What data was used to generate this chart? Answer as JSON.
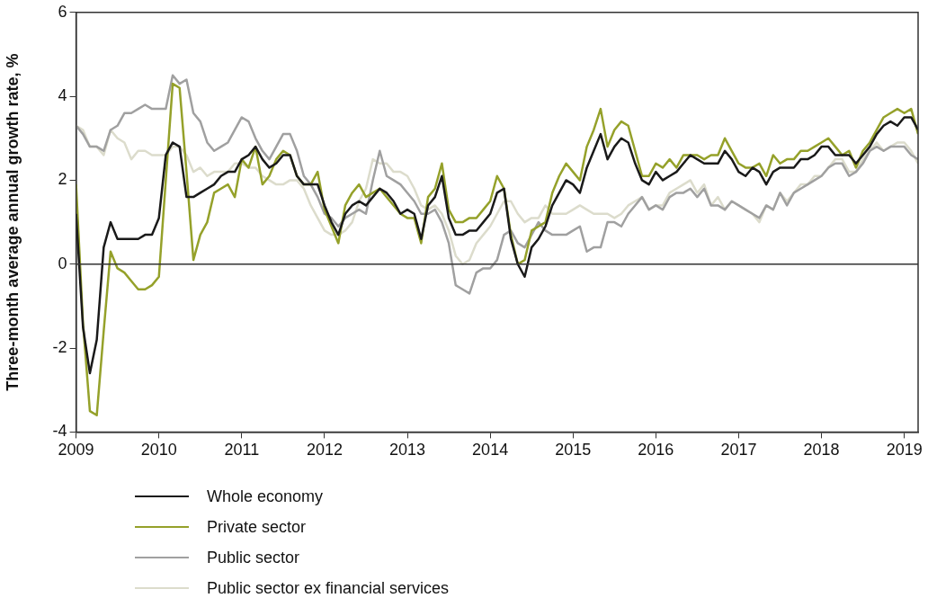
{
  "chart_data": {
    "type": "line",
    "ylabel": "Three-month average annual growth rate, %",
    "x": [
      "2009-01",
      "2009-02",
      "2009-03",
      "2009-04",
      "2009-05",
      "2009-06",
      "2009-07",
      "2009-08",
      "2009-09",
      "2009-10",
      "2009-11",
      "2009-12",
      "2010-01",
      "2010-02",
      "2010-03",
      "2010-04",
      "2010-05",
      "2010-06",
      "2010-07",
      "2010-08",
      "2010-09",
      "2010-10",
      "2010-11",
      "2010-12",
      "2011-01",
      "2011-02",
      "2011-03",
      "2011-04",
      "2011-05",
      "2011-06",
      "2011-07",
      "2011-08",
      "2011-09",
      "2011-10",
      "2011-11",
      "2011-12",
      "2012-01",
      "2012-02",
      "2012-03",
      "2012-04",
      "2012-05",
      "2012-06",
      "2012-07",
      "2012-08",
      "2012-09",
      "2012-10",
      "2012-11",
      "2012-12",
      "2013-01",
      "2013-02",
      "2013-03",
      "2013-04",
      "2013-05",
      "2013-06",
      "2013-07",
      "2013-08",
      "2013-09",
      "2013-10",
      "2013-11",
      "2013-12",
      "2014-01",
      "2014-02",
      "2014-03",
      "2014-04",
      "2014-05",
      "2014-06",
      "2014-07",
      "2014-08",
      "2014-09",
      "2014-10",
      "2014-11",
      "2014-12",
      "2015-01",
      "2015-02",
      "2015-03",
      "2015-04",
      "2015-05",
      "2015-06",
      "2015-07",
      "2015-08",
      "2015-09",
      "2015-10",
      "2015-11",
      "2015-12",
      "2016-01",
      "2016-02",
      "2016-03",
      "2016-04",
      "2016-05",
      "2016-06",
      "2016-07",
      "2016-08",
      "2016-09",
      "2016-10",
      "2016-11",
      "2016-12",
      "2017-01",
      "2017-02",
      "2017-03",
      "2017-04",
      "2017-05",
      "2017-06",
      "2017-07",
      "2017-08",
      "2017-09",
      "2017-10",
      "2017-11",
      "2017-12",
      "2018-01",
      "2018-02",
      "2018-03",
      "2018-04",
      "2018-05",
      "2018-06",
      "2018-07",
      "2018-08",
      "2018-09",
      "2018-10",
      "2018-11",
      "2018-12",
      "2019-01",
      "2019-02",
      "2019-03"
    ],
    "series": [
      {
        "name": "Whole economy",
        "color": "#1a1a1a",
        "values": [
          1.2,
          -1.5,
          -2.6,
          -1.8,
          0.4,
          1.0,
          0.6,
          0.6,
          0.6,
          0.6,
          0.7,
          0.7,
          1.1,
          2.6,
          2.9,
          2.8,
          1.6,
          1.6,
          1.7,
          1.8,
          1.9,
          2.1,
          2.2,
          2.2,
          2.5,
          2.6,
          2.8,
          2.5,
          2.3,
          2.4,
          2.6,
          2.6,
          2.1,
          1.9,
          1.9,
          1.9,
          1.4,
          1.0,
          0.7,
          1.2,
          1.4,
          1.5,
          1.4,
          1.6,
          1.8,
          1.7,
          1.5,
          1.2,
          1.3,
          1.2,
          0.6,
          1.4,
          1.6,
          2.1,
          1.1,
          0.7,
          0.7,
          0.8,
          0.8,
          1.0,
          1.2,
          1.7,
          1.8,
          0.6,
          0.0,
          -0.3,
          0.4,
          0.6,
          0.9,
          1.4,
          1.7,
          2.0,
          1.9,
          1.7,
          2.3,
          2.7,
          3.1,
          2.5,
          2.8,
          3.0,
          2.9,
          2.4,
          2.0,
          1.9,
          2.2,
          2.0,
          2.1,
          2.2,
          2.4,
          2.6,
          2.5,
          2.4,
          2.4,
          2.4,
          2.7,
          2.5,
          2.2,
          2.1,
          2.3,
          2.2,
          1.9,
          2.2,
          2.3,
          2.3,
          2.3,
          2.5,
          2.5,
          2.6,
          2.8,
          2.8,
          2.6,
          2.6,
          2.6,
          2.4,
          2.6,
          2.8,
          3.1,
          3.3,
          3.4,
          3.3,
          3.5,
          3.5,
          3.2
        ]
      },
      {
        "name": "Private sector",
        "color": "#95a12a",
        "values": [
          1.9,
          -1.4,
          -3.5,
          -3.6,
          -1.6,
          0.3,
          -0.1,
          -0.2,
          -0.4,
          -0.6,
          -0.6,
          -0.5,
          -0.3,
          2.0,
          4.3,
          4.2,
          2.2,
          0.1,
          0.7,
          1.0,
          1.7,
          1.8,
          1.9,
          1.6,
          2.5,
          2.3,
          2.8,
          1.9,
          2.1,
          2.5,
          2.7,
          2.6,
          2.1,
          1.9,
          1.9,
          2.2,
          1.3,
          0.9,
          0.5,
          1.4,
          1.7,
          1.9,
          1.6,
          1.7,
          1.8,
          1.6,
          1.4,
          1.2,
          1.1,
          1.1,
          0.5,
          1.6,
          1.8,
          2.4,
          1.3,
          1.0,
          1.0,
          1.1,
          1.1,
          1.3,
          1.5,
          2.1,
          1.8,
          0.7,
          0.0,
          0.1,
          0.8,
          0.9,
          1.0,
          1.7,
          2.1,
          2.4,
          2.2,
          2.0,
          2.8,
          3.2,
          3.7,
          2.8,
          3.2,
          3.4,
          3.3,
          2.7,
          2.1,
          2.1,
          2.4,
          2.3,
          2.5,
          2.3,
          2.6,
          2.6,
          2.6,
          2.5,
          2.6,
          2.6,
          3.0,
          2.7,
          2.4,
          2.3,
          2.3,
          2.4,
          2.1,
          2.6,
          2.4,
          2.5,
          2.5,
          2.7,
          2.7,
          2.8,
          2.9,
          3.0,
          2.8,
          2.6,
          2.7,
          2.3,
          2.7,
          2.9,
          3.2,
          3.5,
          3.6,
          3.7,
          3.6,
          3.7,
          3.1
        ]
      },
      {
        "name": "Public sector",
        "color": "#a0a0a0",
        "values": [
          3.3,
          3.1,
          2.8,
          2.8,
          2.7,
          3.2,
          3.3,
          3.6,
          3.6,
          3.7,
          3.8,
          3.7,
          3.7,
          3.7,
          4.5,
          4.3,
          4.4,
          3.6,
          3.4,
          2.9,
          2.7,
          2.8,
          2.9,
          3.2,
          3.5,
          3.4,
          3.0,
          2.7,
          2.5,
          2.8,
          3.1,
          3.1,
          2.7,
          2.1,
          1.9,
          1.6,
          1.2,
          1.1,
          0.9,
          1.1,
          1.2,
          1.3,
          1.2,
          2.0,
          2.7,
          2.1,
          2.0,
          1.9,
          1.7,
          1.5,
          1.2,
          1.2,
          1.3,
          1.0,
          0.5,
          -0.5,
          -0.6,
          -0.7,
          -0.2,
          -0.1,
          -0.1,
          0.1,
          0.7,
          0.8,
          0.5,
          0.4,
          0.7,
          1.0,
          0.8,
          0.7,
          0.7,
          0.7,
          0.8,
          0.9,
          0.3,
          0.4,
          0.4,
          1.0,
          1.0,
          0.9,
          1.2,
          1.4,
          1.6,
          1.3,
          1.4,
          1.3,
          1.6,
          1.7,
          1.7,
          1.8,
          1.6,
          1.8,
          1.4,
          1.4,
          1.3,
          1.5,
          1.4,
          1.3,
          1.2,
          1.1,
          1.4,
          1.3,
          1.7,
          1.4,
          1.7,
          1.8,
          1.9,
          2.0,
          2.1,
          2.3,
          2.4,
          2.4,
          2.1,
          2.2,
          2.4,
          2.7,
          2.8,
          2.7,
          2.8,
          2.8,
          2.8,
          2.6,
          2.5
        ]
      },
      {
        "name": "Public sector ex financial services",
        "color": "#dcdccc",
        "values": [
          3.3,
          3.2,
          2.8,
          2.8,
          2.6,
          3.2,
          3.0,
          2.9,
          2.5,
          2.7,
          2.7,
          2.6,
          2.6,
          2.6,
          2.8,
          2.8,
          2.6,
          2.2,
          2.3,
          2.1,
          2.2,
          2.2,
          2.2,
          2.4,
          2.4,
          2.3,
          2.3,
          2.1,
          2.0,
          1.9,
          1.9,
          2.0,
          2.0,
          1.8,
          1.4,
          1.1,
          0.8,
          0.7,
          0.7,
          0.8,
          1.0,
          1.5,
          1.8,
          2.5,
          2.4,
          2.4,
          2.2,
          2.2,
          2.1,
          1.8,
          1.4,
          1.3,
          1.4,
          1.2,
          0.8,
          0.2,
          0.0,
          0.1,
          0.5,
          0.7,
          0.9,
          1.2,
          1.5,
          1.5,
          1.2,
          1.0,
          1.1,
          1.1,
          1.4,
          1.2,
          1.2,
          1.2,
          1.3,
          1.4,
          1.3,
          1.2,
          1.2,
          1.2,
          1.1,
          1.2,
          1.4,
          1.5,
          1.6,
          1.3,
          1.4,
          1.4,
          1.7,
          1.8,
          1.9,
          2.0,
          1.7,
          1.9,
          1.4,
          1.6,
          1.3,
          1.5,
          1.4,
          1.3,
          1.2,
          1.0,
          1.4,
          1.3,
          1.7,
          1.5,
          1.7,
          1.9,
          1.9,
          2.1,
          2.1,
          2.3,
          2.5,
          2.5,
          2.2,
          2.2,
          2.5,
          2.7,
          2.9,
          2.7,
          2.8,
          2.9,
          2.9,
          2.7,
          2.4
        ]
      }
    ],
    "xlim": [
      "2009-01",
      "2019-03"
    ],
    "xticks": [
      "2009",
      "2010",
      "2011",
      "2012",
      "2013",
      "2014",
      "2015",
      "2016",
      "2017",
      "2018",
      "2019"
    ],
    "ylim": [
      -4,
      6
    ],
    "yticks": [
      -4,
      -2,
      0,
      2,
      4,
      6
    ],
    "ref_lines": [
      {
        "axis": "y",
        "value": 0
      }
    ],
    "grid": false,
    "legend": "bottom",
    "marker": "none",
    "line_style": "solid"
  }
}
